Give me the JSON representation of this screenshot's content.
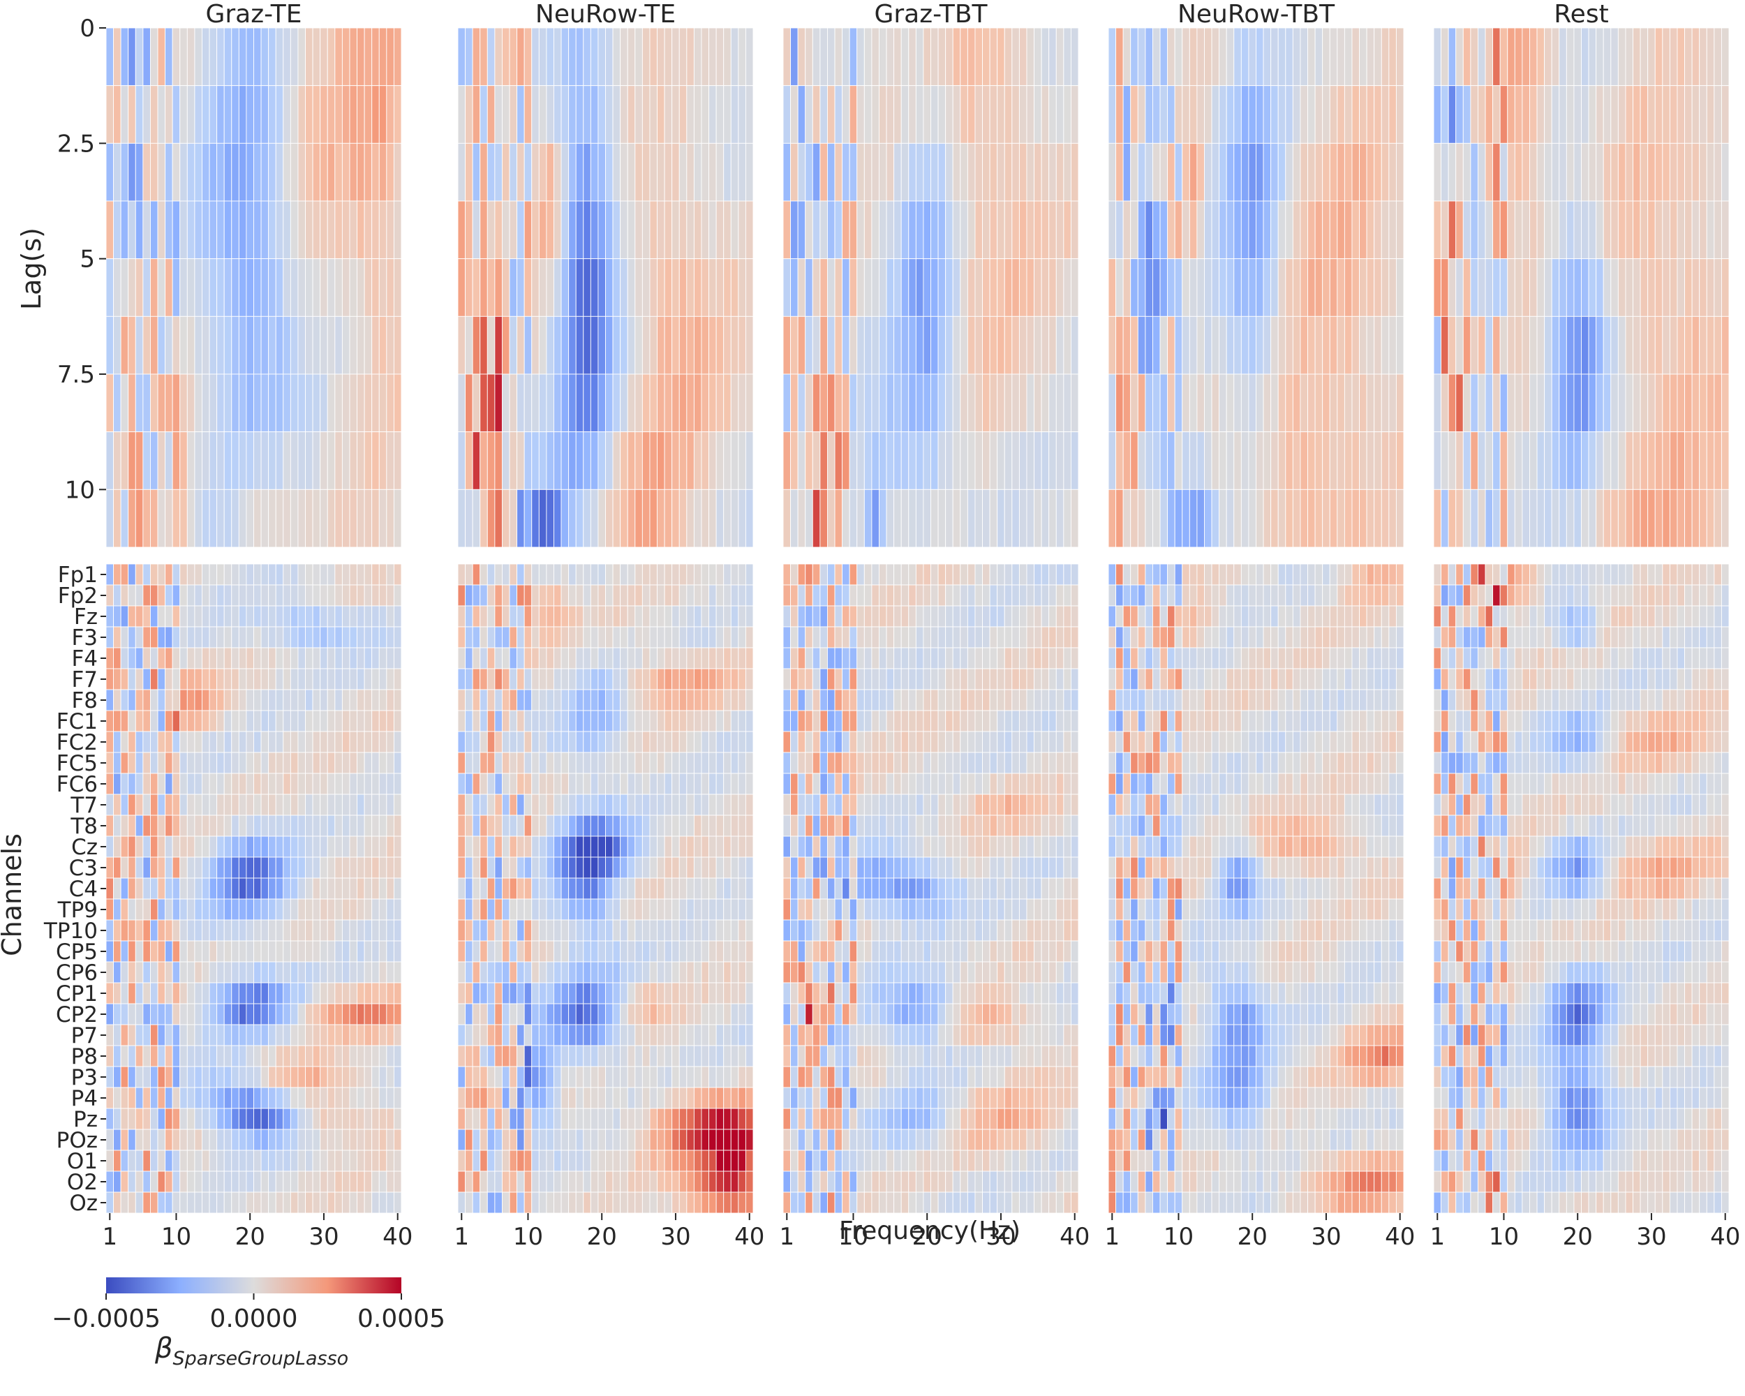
{
  "chart_data": {
    "type": "heatmap",
    "panel_titles": [
      "Graz-TE",
      "NeuRow-TE",
      "Graz-TBT",
      "NeuRow-TBT",
      "Rest"
    ],
    "x": {
      "label": "Frequency(Hz)",
      "range": [
        1,
        40
      ],
      "ticks": [
        "1",
        "10",
        "20",
        "30",
        "40"
      ],
      "bins": 40
    },
    "top_row": {
      "ylabel": "Lag(s)",
      "row_count": 9,
      "lag_step_s": 1.25,
      "ticks": [
        "0",
        "2.5",
        "5",
        "7.5",
        "10"
      ]
    },
    "bottom_row": {
      "ylabel": "Channels",
      "channels": [
        "Fp1",
        "Fp2",
        "Fz",
        "F3",
        "F4",
        "F7",
        "F8",
        "FC1",
        "FC2",
        "FC5",
        "FC6",
        "T7",
        "T8",
        "Cz",
        "C3",
        "C4",
        "TP9",
        "TP10",
        "CP5",
        "CP6",
        "CP1",
        "CP2",
        "P7",
        "P8",
        "P3",
        "P4",
        "Pz",
        "POz",
        "O1",
        "O2",
        "Oz"
      ]
    },
    "colorbar": {
      "colormap": "coolwarm",
      "min": -0.0005,
      "max": 0.0005,
      "ticks": [
        "−0.0005",
        "0.0000",
        "0.0005"
      ],
      "label_main": "β",
      "label_sub": "SparseGroupLasso"
    },
    "grid": true,
    "features": {
      "lag_blobs": [
        [
          [
            20,
            3.5,
            4.5,
            3.2,
            -0.6
          ],
          [
            5,
            1,
            1.5,
            3,
            -0.3
          ],
          [
            30,
            1,
            6,
            2.5,
            0.25
          ],
          [
            38,
            2,
            3,
            3,
            0.28
          ],
          [
            10,
            8,
            1,
            1.5,
            0.5
          ],
          [
            22,
            8,
            3,
            1.2,
            0.35
          ],
          [
            4,
            7,
            1,
            2,
            0.3
          ]
        ],
        [
          [
            18,
            4,
            3,
            2.5,
            -0.9
          ],
          [
            12,
            8.5,
            2.5,
            0.8,
            -0.85
          ],
          [
            6,
            7,
            1,
            2,
            0.5
          ],
          [
            3,
            6,
            2,
            2,
            0.5
          ],
          [
            30,
            4.5,
            5,
            2,
            0.35
          ],
          [
            13,
            2.5,
            1.5,
            1,
            0.5
          ],
          [
            25,
            8,
            4,
            1.2,
            0.3
          ]
        ],
        [
          [
            20,
            4,
            3,
            2.5,
            -0.55
          ],
          [
            6,
            7.5,
            2,
            1,
            0.6
          ],
          [
            13,
            8.5,
            1,
            1,
            -0.65
          ],
          [
            28,
            1.5,
            6,
            3,
            0.3
          ],
          [
            19,
            7,
            4,
            1,
            -0.4
          ],
          [
            3,
            1,
            1.5,
            2,
            -0.3
          ],
          [
            20,
            7.5,
            3,
            1,
            0.3
          ]
        ],
        [
          [
            20,
            3,
            3,
            2.5,
            -0.55
          ],
          [
            12,
            8.5,
            2,
            1,
            -0.8
          ],
          [
            3,
            7,
            1,
            1,
            0.6
          ],
          [
            12,
            2.5,
            1,
            1,
            0.45
          ],
          [
            32,
            4.5,
            6,
            3,
            0.3
          ],
          [
            25,
            7.5,
            4,
            1.2,
            0.3
          ],
          [
            6,
            3,
            2,
            2,
            -0.3
          ]
        ],
        [
          [
            20,
            5,
            3,
            1.5,
            -0.75
          ],
          [
            3,
            5,
            1,
            2,
            0.55
          ],
          [
            12,
            0.5,
            3,
            2,
            0.45
          ],
          [
            33,
            4.5,
            7,
            3,
            0.28
          ],
          [
            3,
            0.5,
            1,
            1,
            -0.4
          ],
          [
            30,
            8.5,
            6,
            1,
            0.2
          ]
        ]
      ],
      "channel_blobs": [
        [
          [
            20,
            14.5,
            4,
            1.5,
            -0.8
          ],
          [
            20,
            20.5,
            4,
            1,
            -0.85
          ],
          [
            22,
            26,
            4,
            0.8,
            -0.8
          ],
          [
            18,
            25,
            4,
            1,
            -0.5
          ],
          [
            35,
            21,
            6,
            0.7,
            0.5
          ],
          [
            30,
            26,
            5,
            0.8,
            0.35
          ],
          [
            28,
            2.5,
            5,
            0.8,
            -0.45
          ],
          [
            12,
            6,
            3,
            1,
            0.4
          ],
          [
            28,
            24,
            5,
            0.7,
            0.3
          ]
        ],
        [
          [
            18,
            14.5,
            3,
            2,
            -0.75
          ],
          [
            18,
            21,
            4,
            1.5,
            -0.75
          ],
          [
            11,
            24.5,
            2,
            1.5,
            -0.65
          ],
          [
            20,
            13,
            4,
            1,
            -0.5
          ],
          [
            35,
            26.5,
            6,
            1.2,
            0.8
          ],
          [
            37,
            29.5,
            4,
            1,
            0.85
          ],
          [
            38,
            27.5,
            2,
            1,
            0.6
          ],
          [
            30,
            5,
            5,
            0.8,
            0.45
          ],
          [
            13,
            1.5,
            2,
            1,
            0.4
          ],
          [
            25,
            20.5,
            3,
            0.8,
            0.35
          ],
          [
            19,
            7,
            3,
            2,
            -0.4
          ]
        ],
        [
          [
            18,
            15,
            4,
            1,
            -0.65
          ],
          [
            19,
            21,
            4,
            1.2,
            -0.7
          ],
          [
            19,
            26,
            4,
            1,
            -0.4
          ],
          [
            27,
            21.5,
            5,
            0.8,
            0.45
          ],
          [
            30,
            26,
            6,
            1.2,
            0.3
          ],
          [
            5,
            21,
            1.5,
            0.8,
            0.5
          ],
          [
            30,
            11,
            5,
            0.8,
            0.25
          ],
          [
            12,
            14.5,
            3,
            1,
            -0.4
          ]
        ],
        [
          [
            18,
            14.5,
            2,
            1.2,
            -0.65
          ],
          [
            18,
            21,
            3,
            1.5,
            -0.65
          ],
          [
            18,
            25,
            3,
            1.5,
            -0.55
          ],
          [
            38,
            23,
            4,
            1,
            0.55
          ],
          [
            35,
            29,
            6,
            1,
            0.5
          ],
          [
            28,
            13,
            5,
            1,
            0.4
          ],
          [
            8,
            20.5,
            1.5,
            1,
            -0.6
          ],
          [
            8,
            26,
            1.5,
            1,
            -0.55
          ],
          [
            12,
            2.5,
            2,
            0.8,
            0.35
          ],
          [
            36,
            0,
            3,
            1,
            0.3
          ]
        ],
        [
          [
            20,
            14,
            3,
            1,
            -0.6
          ],
          [
            20,
            21,
            3,
            1.5,
            -0.75
          ],
          [
            20,
            25.5,
            3,
            1.5,
            -0.8
          ],
          [
            20,
            8,
            3,
            1,
            -0.45
          ],
          [
            10,
            0.5,
            3,
            1,
            0.55
          ],
          [
            30,
            14,
            6,
            1,
            0.35
          ],
          [
            10,
            14.5,
            2,
            1.2,
            0.4
          ],
          [
            32,
            8,
            6,
            1,
            0.3
          ],
          [
            8,
            29.5,
            1.5,
            1,
            0.5
          ],
          [
            20,
            2.5,
            2,
            0.8,
            -0.45
          ]
        ]
      ]
    }
  }
}
